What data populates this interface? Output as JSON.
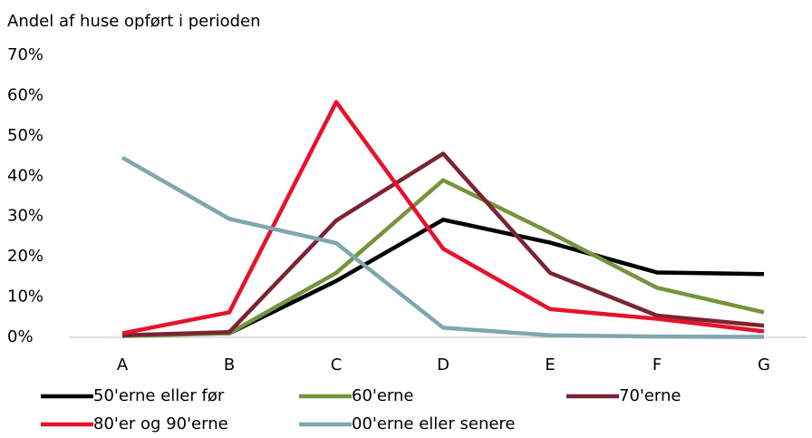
{
  "chart_data": {
    "type": "line",
    "y_label": "Andel af huse opført i perioden",
    "categories": [
      "A",
      "B",
      "C",
      "D",
      "E",
      "F",
      "G"
    ],
    "series": [
      {
        "name": "50'erne eller før",
        "color": "#000000",
        "values": [
          0.5,
          1,
          14,
          29.2,
          23.5,
          16.1,
          15.7
        ]
      },
      {
        "name": "60'erne",
        "color": "#77933c",
        "values": [
          0.3,
          1,
          16,
          39,
          26,
          12.3,
          6.2
        ]
      },
      {
        "name": "70'erne",
        "color": "#7b2331",
        "values": [
          0.5,
          1.3,
          29,
          45.6,
          16,
          5.4,
          2.9
        ]
      },
      {
        "name": "80'er og 90'erne",
        "color": "#e8112d",
        "values": [
          1,
          6.2,
          58.4,
          22,
          7,
          4.6,
          1.5
        ]
      },
      {
        "name": "00'erne eller senere",
        "color": "#7ea7ae",
        "values": [
          44.6,
          29.4,
          23.4,
          2.4,
          0.5,
          0.2,
          0.1
        ]
      }
    ],
    "ylim": [
      0,
      70
    ],
    "yticks": [
      {
        "value": 0,
        "label": "0%"
      },
      {
        "value": 10,
        "label": "10%"
      },
      {
        "value": 20,
        "label": "20%"
      },
      {
        "value": 30,
        "label": "30%"
      },
      {
        "value": 40,
        "label": "40%"
      },
      {
        "value": 50,
        "label": "50%"
      },
      {
        "value": 60,
        "label": "60%"
      },
      {
        "value": 70,
        "label": "70%"
      }
    ],
    "grid": false,
    "legend": "bottom"
  }
}
